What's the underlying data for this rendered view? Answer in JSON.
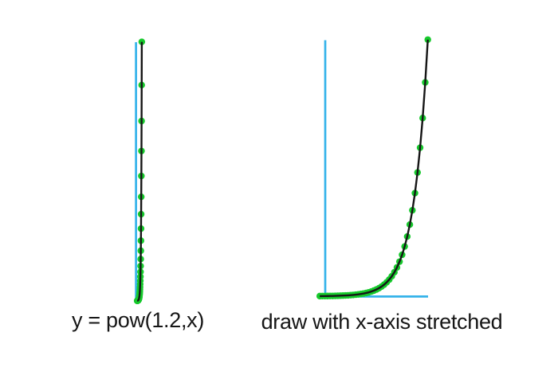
{
  "figure": {
    "background": "#ffffff"
  },
  "chart_data": {
    "type": "line",
    "function": "y = pow(1.2,x)",
    "x_step": 1,
    "x_range": [
      -2,
      40
    ],
    "y_range": [
      0,
      1469.772
    ],
    "grid": false,
    "legend": false,
    "tick_labels": false,
    "marker": "filled-circle",
    "colors": {
      "axis": "#35b3ea",
      "curve": "#161616",
      "marker": "#16c92c",
      "text": "#161616"
    },
    "x": [
      -2,
      -1,
      0,
      1,
      2,
      3,
      4,
      5,
      6,
      7,
      8,
      9,
      10,
      11,
      12,
      13,
      14,
      15,
      16,
      17,
      18,
      19,
      20,
      21,
      22,
      23,
      24,
      25,
      26,
      27,
      28,
      29,
      30,
      31,
      32,
      33,
      34,
      35,
      36,
      37,
      38,
      39,
      40
    ],
    "y": [
      0.694,
      0.833,
      1,
      1.2,
      1.44,
      1.728,
      2.074,
      2.488,
      2.986,
      3.583,
      4.3,
      5.16,
      6.192,
      7.43,
      8.916,
      10.699,
      12.839,
      15.407,
      18.488,
      22.186,
      26.623,
      31.948,
      38.338,
      46.005,
      55.206,
      66.247,
      79.497,
      95.396,
      114.475,
      137.371,
      164.845,
      197.814,
      237.376,
      284.852,
      341.822,
      410.186,
      492.224,
      590.668,
      708.802,
      850.562,
      1020.675,
      1224.81,
      1469.772
    ],
    "views": [
      {
        "id": "true-scale",
        "label": "y = pow(1.2,x)"
      },
      {
        "id": "x-stretched",
        "label": "draw with x-axis stretched"
      }
    ]
  }
}
